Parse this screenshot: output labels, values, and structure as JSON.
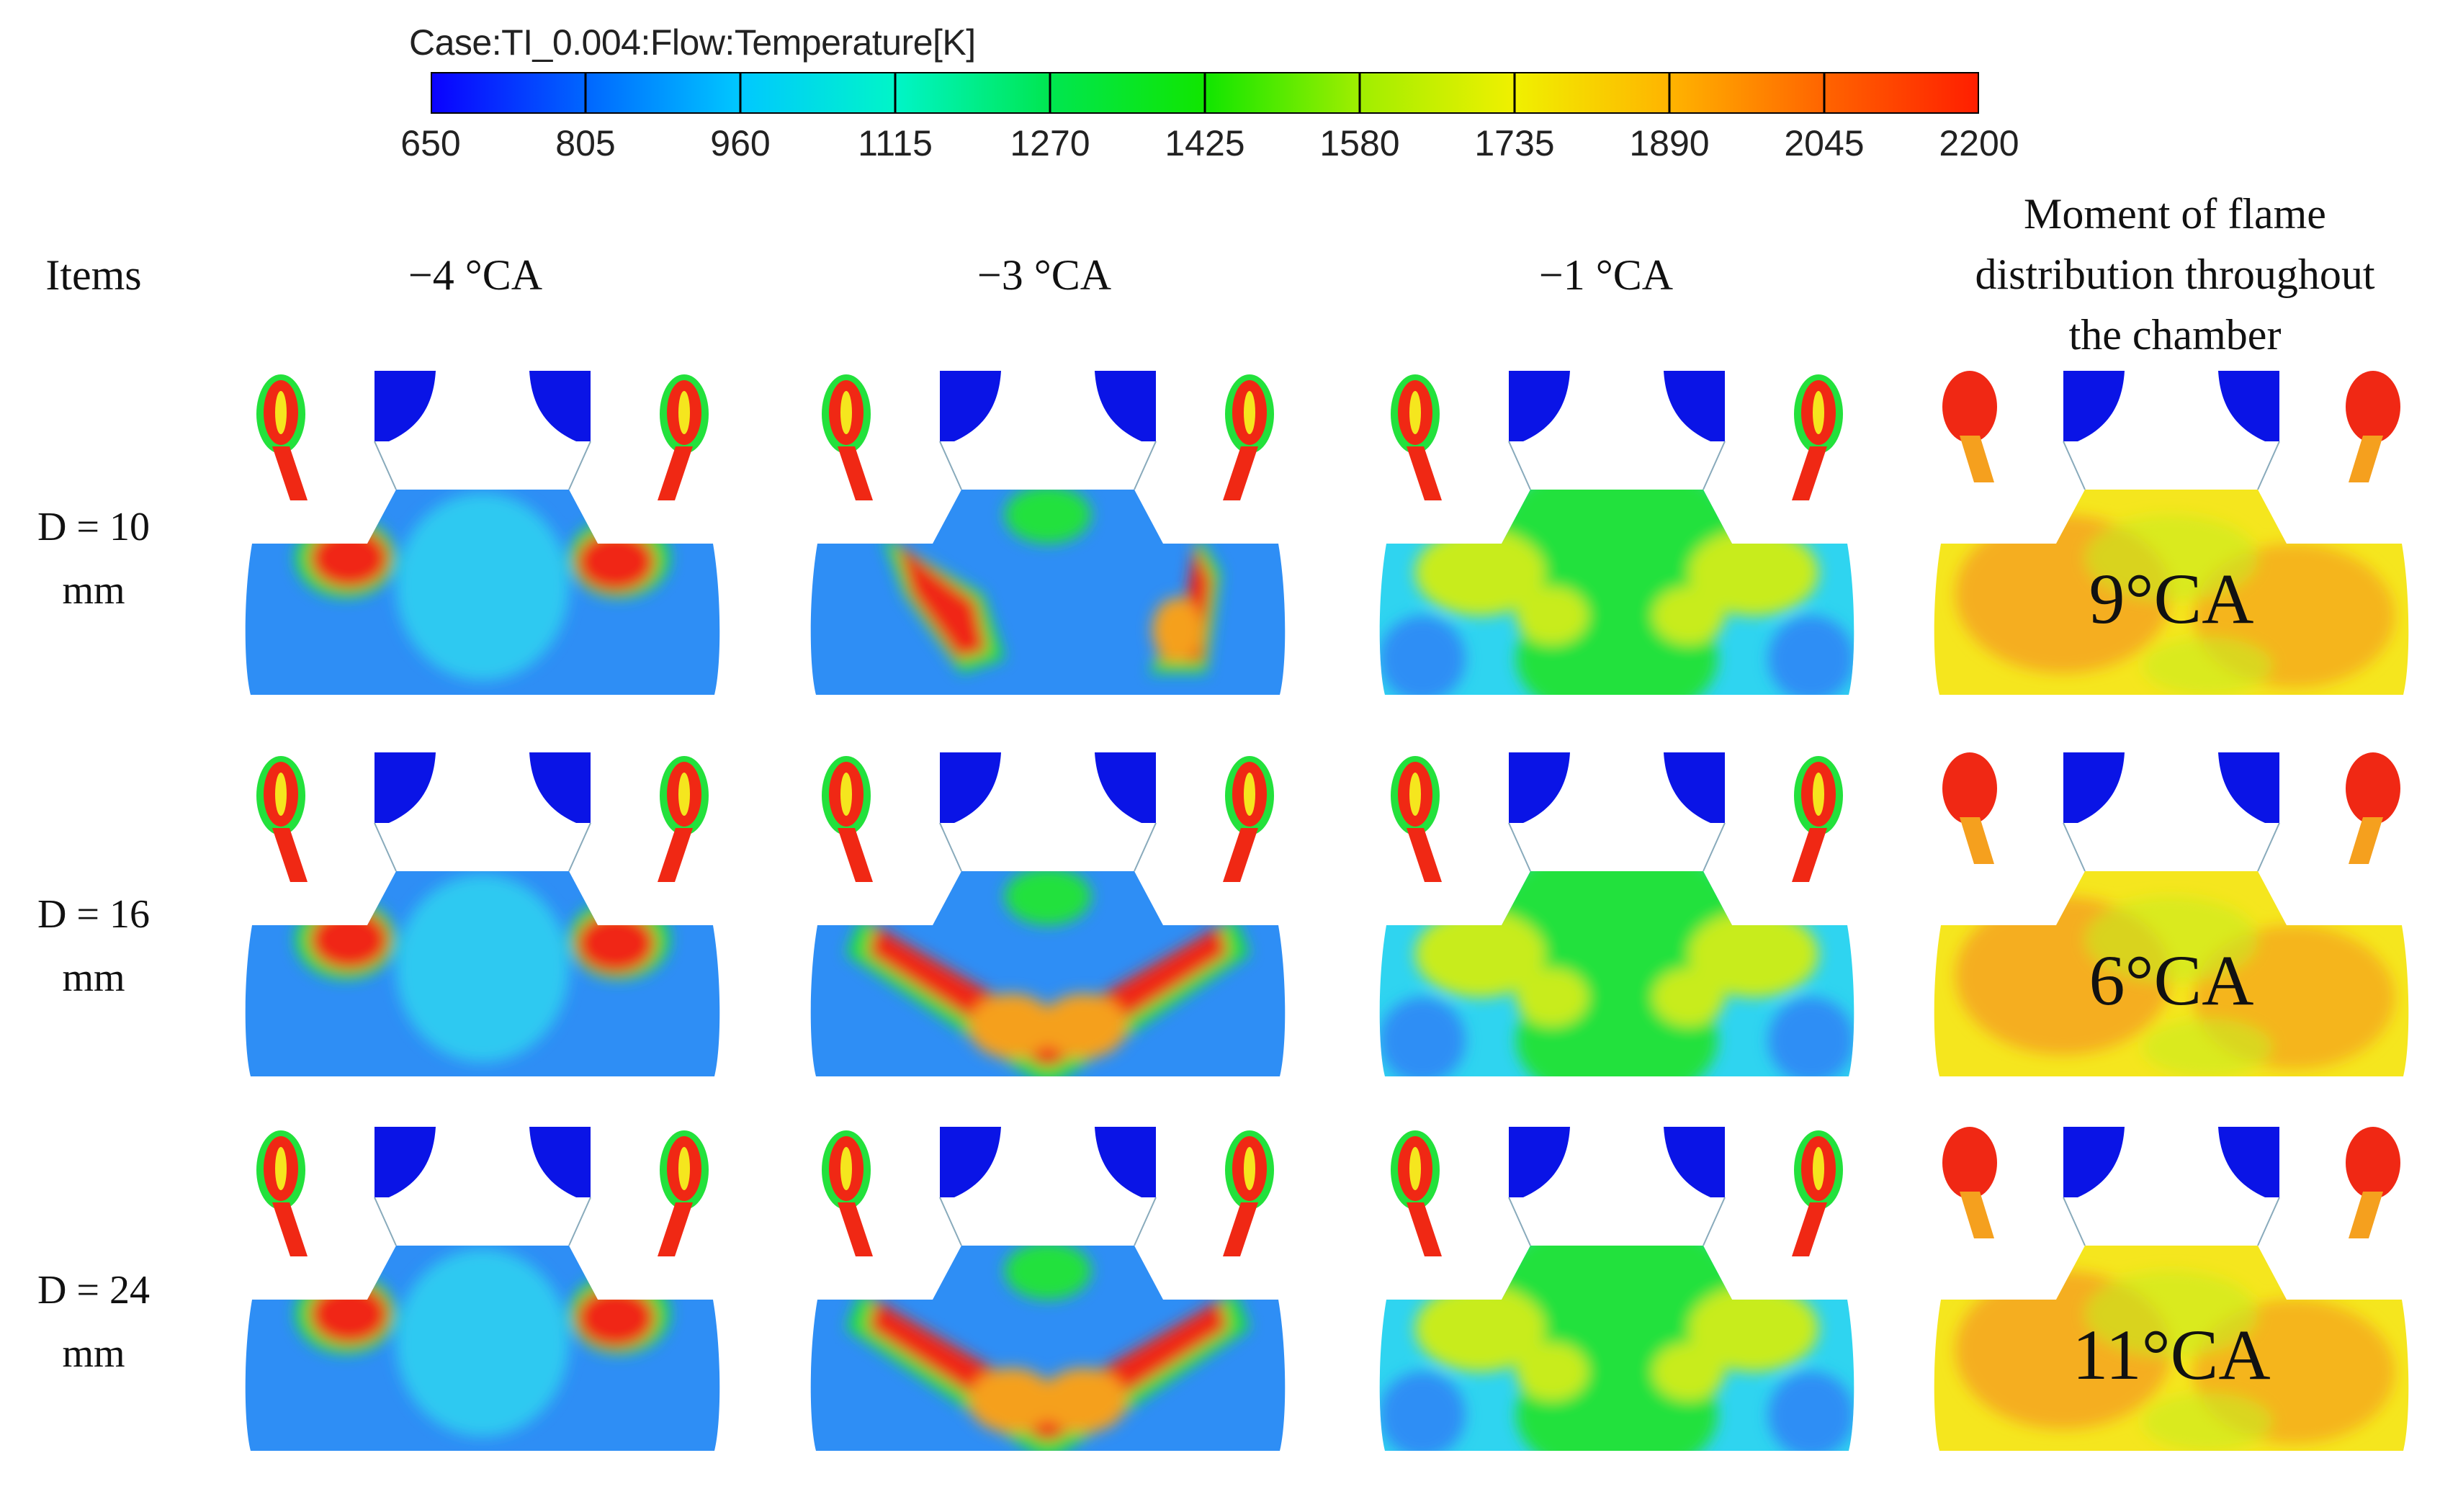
{
  "colorbar": {
    "title": "Case:TI_0.004:Flow:Temperature[K]",
    "ticks": [
      "650",
      "805",
      "960",
      "1115",
      "1270",
      "1425",
      "1580",
      "1735",
      "1890",
      "2045",
      "2200"
    ],
    "stops": [
      "#0a00ff",
      "#0066ff",
      "#00c8ff",
      "#00f5c8",
      "#00e650",
      "#10e600",
      "#a0ee00",
      "#f0f000",
      "#ffb400",
      "#ff6400",
      "#ff1e00"
    ]
  },
  "header": {
    "items": "Items",
    "col1": "−4 °CA",
    "col2": "−3 °CA",
    "col3": "−1 °CA",
    "col4_line1": "Moment of flame",
    "col4_line2": "distribution throughout",
    "col4_line3": "the chamber"
  },
  "rows": [
    {
      "label_line1": "D = 10",
      "label_line2": "mm",
      "moment": "9°CA"
    },
    {
      "label_line1": "D = 16",
      "label_line2": "mm",
      "moment": "6°CA"
    },
    {
      "label_line1": "D = 24",
      "label_line2": "mm",
      "moment": "11°CA"
    }
  ],
  "colors": {
    "cold": "#1e73f0",
    "bluish": "#2e8ef5",
    "cyan": "#2fd4f0",
    "green": "#23e13c",
    "yellowgreen": "#c8ec1e",
    "yellow": "#f5e61e",
    "orange": "#f5a01e",
    "red": "#f02814",
    "valve": "#0a14e6"
  }
}
